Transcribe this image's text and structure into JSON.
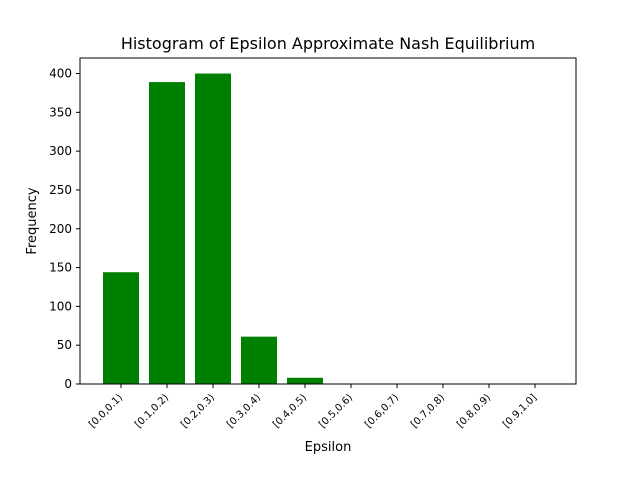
{
  "chart_data": {
    "type": "bar",
    "title": "Histogram of Epsilon Approximate Nash Equilibrium",
    "xlabel": "Epsilon",
    "ylabel": "Frequency",
    "categories": [
      "[0.0,0.1)",
      "[0.1,0.2)",
      "[0.2,0.3)",
      "[0.3,0.4)",
      "[0.4,0.5)",
      "[0.5,0.6)",
      "[0.6,0.7)",
      "[0.7,0.8)",
      "[0.8,0.9)",
      "[0.9,1.0]"
    ],
    "values": [
      144,
      389,
      400,
      61,
      8,
      0,
      0,
      0,
      0,
      0
    ],
    "ylim": [
      0,
      420
    ],
    "yticks": [
      "0",
      "50",
      "100",
      "150",
      "200",
      "250",
      "300",
      "350",
      "400"
    ],
    "bar_color": "#008000",
    "grid": false
  }
}
